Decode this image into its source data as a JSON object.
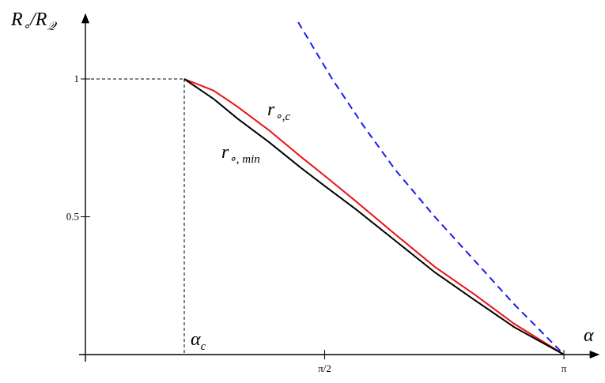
{
  "chart_data": {
    "type": "line",
    "x_label": [
      [
        "α",
        ""
      ]
    ],
    "y_label": [
      [
        "R",
        "∘"
      ],
      [
        "/R",
        "𝒬"
      ]
    ],
    "xlim": [
      0,
      3.35
    ],
    "ylim": [
      0,
      1.23
    ],
    "xticks": [
      {
        "value": 1.5708,
        "label": "π/2"
      },
      {
        "value": 3.1416,
        "label": "π"
      }
    ],
    "yticks": [
      0.5,
      1
    ],
    "critical": {
      "x": 0.649,
      "y": 1,
      "label": [
        [
          "α",
          "c"
        ]
      ]
    },
    "series": [
      {
        "name": [
          [
            "r",
            "∘,c"
          ]
        ],
        "color": "#ee1111",
        "dash": false,
        "x": [
          0.649,
          0.841,
          0.997,
          1.205,
          1.412,
          1.568,
          1.776,
          2.035,
          2.295,
          2.555,
          2.814,
          3.142
        ],
        "values": [
          1.0,
          0.958,
          0.9,
          0.814,
          0.719,
          0.65,
          0.556,
          0.436,
          0.318,
          0.218,
          0.112,
          0
        ]
      },
      {
        "name": [
          [
            "r",
            "∘, min"
          ]
        ],
        "color": "#000000",
        "dash": false,
        "x": [
          0.649,
          0.841,
          0.997,
          1.205,
          1.412,
          1.568,
          1.776,
          2.035,
          2.295,
          2.555,
          2.814,
          3.142
        ],
        "values": [
          1.0,
          0.928,
          0.857,
          0.771,
          0.679,
          0.613,
          0.527,
          0.413,
          0.298,
          0.198,
          0.1,
          0
        ]
      },
      {
        "name": null,
        "color": "#1a1aee",
        "dash": true,
        "x": [
          1.397,
          1.62,
          1.828,
          2.035,
          2.295,
          2.555,
          2.814,
          3.142
        ],
        "values": [
          1.206,
          1.0,
          0.828,
          0.67,
          0.499,
          0.341,
          0.183,
          0
        ]
      }
    ]
  }
}
